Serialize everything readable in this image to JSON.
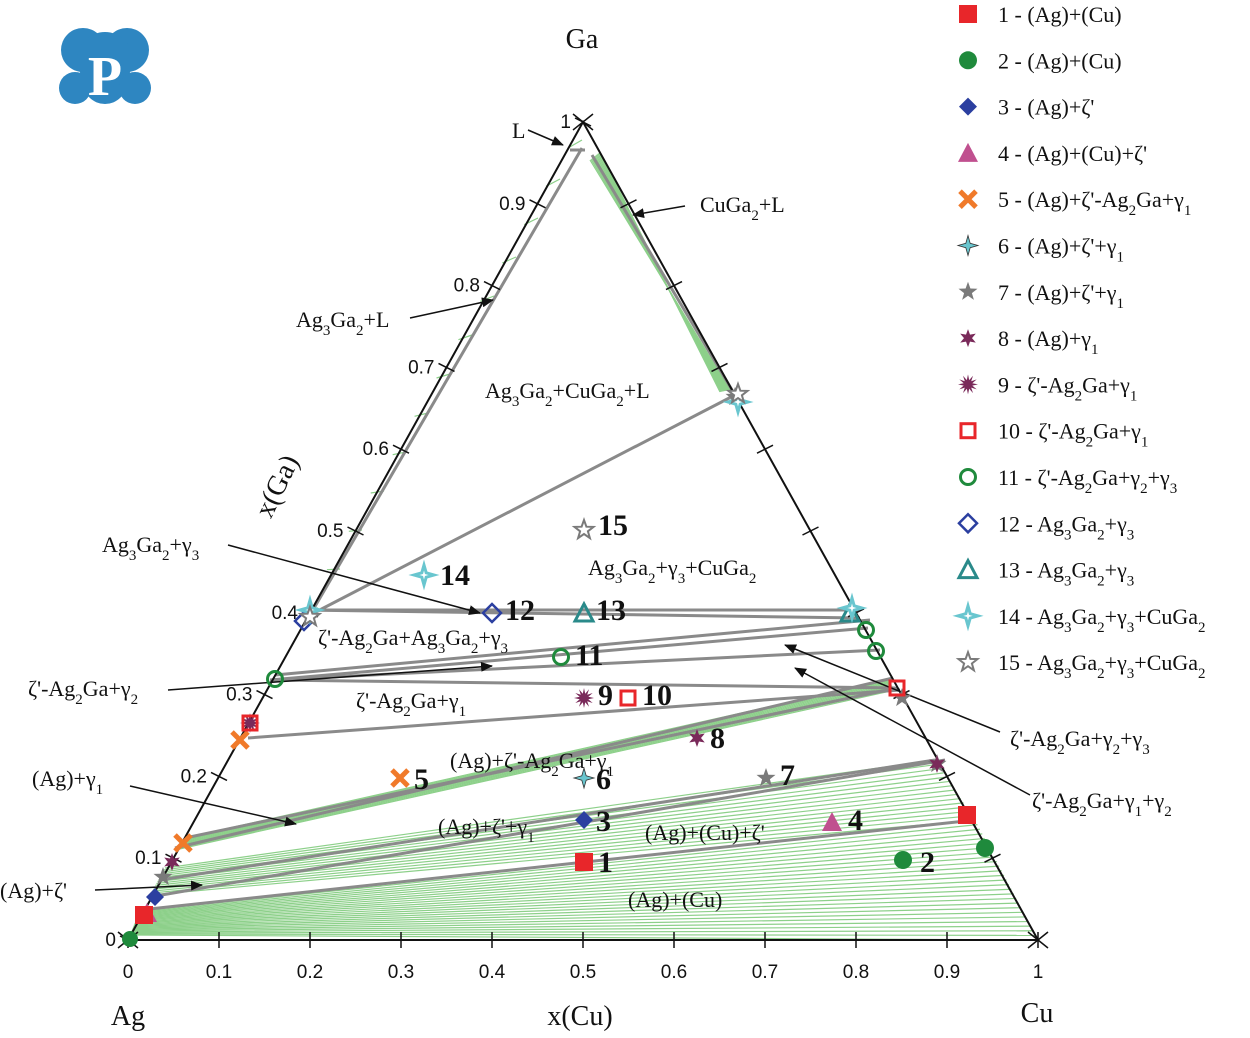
{
  "logo": {
    "letter": "P"
  },
  "corners": {
    "top": "Ga",
    "left": "Ag",
    "right": "Cu"
  },
  "axes": {
    "bottom_title": "x(Cu)",
    "left_title": "x(Ga)",
    "ticks": [
      "0",
      "0.1",
      "0.2",
      "0.3",
      "0.4",
      "0.5",
      "0.6",
      "0.7",
      "0.8",
      "0.9",
      "1"
    ],
    "range": [
      0,
      1
    ]
  },
  "regions": [
    {
      "id": "L",
      "html": "L"
    },
    {
      "id": "cuga2_l",
      "html": "CuGa<tspan baseline-shift='sub' font-size='15'>2</tspan>+L"
    },
    {
      "id": "ag3ga2_l",
      "html": "Ag<tspan baseline-shift='sub' font-size='15'>3</tspan>Ga<tspan baseline-shift='sub' font-size='15'>2</tspan>+L"
    },
    {
      "id": "ag3ga2_cuga2_l",
      "html": "Ag<tspan baseline-shift='sub' font-size='15'>3</tspan>Ga<tspan baseline-shift='sub' font-size='15'>2</tspan>+CuGa<tspan baseline-shift='sub' font-size='15'>2</tspan>+L"
    },
    {
      "id": "ag3ga2_g3",
      "html": "Ag<tspan baseline-shift='sub' font-size='15'>3</tspan>Ga<tspan baseline-shift='sub' font-size='15'>2</tspan>+γ<tspan baseline-shift='sub' font-size='15'>3</tspan>"
    },
    {
      "id": "ag3ga2_g3_cuga2",
      "html": "Ag<tspan baseline-shift='sub' font-size='15'>3</tspan>Ga<tspan baseline-shift='sub' font-size='15'>2</tspan>+γ<tspan baseline-shift='sub' font-size='15'>3</tspan>+CuGa<tspan baseline-shift='sub' font-size='15'>2</tspan>"
    },
    {
      "id": "z_ag3ga2_g3",
      "html": "ζ'-Ag<tspan baseline-shift='sub' font-size='15'>2</tspan>Ga+Ag<tspan baseline-shift='sub' font-size='15'>3</tspan>Ga<tspan baseline-shift='sub' font-size='15'>2</tspan>+γ<tspan baseline-shift='sub' font-size='15'>3</tspan>"
    },
    {
      "id": "z_g2",
      "html": "ζ'-Ag<tspan baseline-shift='sub' font-size='15'>2</tspan>Ga+γ<tspan baseline-shift='sub' font-size='15'>2</tspan>"
    },
    {
      "id": "z_g1",
      "html": "ζ'-Ag<tspan baseline-shift='sub' font-size='15'>2</tspan>Ga+γ<tspan baseline-shift='sub' font-size='15'>1</tspan>"
    },
    {
      "id": "z_g2_g3",
      "html": "ζ'-Ag<tspan baseline-shift='sub' font-size='15'>2</tspan>Ga+γ<tspan baseline-shift='sub' font-size='15'>2</tspan>+γ<tspan baseline-shift='sub' font-size='15'>3</tspan>"
    },
    {
      "id": "z_g1_g2",
      "html": "ζ'-Ag<tspan baseline-shift='sub' font-size='15'>2</tspan>Ga+γ<tspan baseline-shift='sub' font-size='15'>1</tspan>+γ<tspan baseline-shift='sub' font-size='15'>2</tspan>"
    },
    {
      "id": "ag_z_ag2ga_g1",
      "html": "(Ag)+ζ'-Ag<tspan baseline-shift='sub' font-size='15'>2</tspan>Ga+γ<tspan baseline-shift='sub' font-size='15'>1</tspan>"
    },
    {
      "id": "ag_g1",
      "html": "(Ag)+γ<tspan baseline-shift='sub' font-size='15'>1</tspan>"
    },
    {
      "id": "ag_z_g1",
      "html": "(Ag)+ζ'+γ<tspan baseline-shift='sub' font-size='15'>1</tspan>"
    },
    {
      "id": "ag_cu_z",
      "html": "(Ag)+(Cu)+ζ'"
    },
    {
      "id": "ag_z",
      "html": "(Ag)+ζ'"
    },
    {
      "id": "ag_cu",
      "html": "(Ag)+(Cu)"
    }
  ],
  "samples": [
    {
      "n": "1",
      "label": "1",
      "legend": "1 - (Ag)+(Cu)",
      "marker": "square-filled",
      "color": "#e8262a",
      "cu": 0.5,
      "ga": 0.1
    },
    {
      "n": "2",
      "label": "2",
      "legend": "2 - (Ag)+(Cu)",
      "marker": "circle-filled",
      "color": "#1f8a3c",
      "cu": 0.85,
      "ga": 0.1
    },
    {
      "n": "3",
      "label": "3",
      "legend": "3 - (Ag)+ζ'",
      "marker": "diamond-filled",
      "color": "#2b3fa0",
      "cu": 0.43,
      "ga": 0.15
    },
    {
      "n": "4",
      "label": "4",
      "legend": "4 - (Ag)+(Cu)+ζ'",
      "marker": "triangle-filled",
      "color": "#c0508f",
      "cu": 0.69,
      "ga": 0.15
    },
    {
      "n": "5",
      "label": "5",
      "legend": "5 - (Ag)+ζ'-Ag<tspan baseline-shift='sub' font-size='15'>2</tspan>Ga+γ<tspan baseline-shift='sub' font-size='15'>1</tspan>",
      "marker": "x-cross",
      "color": "#f07a2a",
      "cu": 0.2,
      "ga": 0.2
    },
    {
      "n": "6",
      "label": "6",
      "legend": "6 - (Ag)+ζ'+γ<tspan baseline-shift='sub' font-size='15'>1</tspan>",
      "marker": "star4-filled",
      "color": "#69c6cf",
      "cu": 0.4,
      "ga": 0.2
    },
    {
      "n": "7",
      "label": "7",
      "legend": "7 - (Ag)+ζ'+γ<tspan baseline-shift='sub' font-size='15'>1</tspan>",
      "marker": "star5-filled",
      "color": "#7a7a7a",
      "cu": 0.6,
      "ga": 0.2
    },
    {
      "n": "8",
      "label": "8",
      "legend": "8 - (Ag)+γ<tspan baseline-shift='sub' font-size='15'>1</tspan>",
      "marker": "star6-filled",
      "color": "#7a2a5a",
      "cu": 0.5,
      "ga": 0.25
    },
    {
      "n": "9",
      "label": "9",
      "legend": "9 - ζ'-Ag<tspan baseline-shift='sub' font-size='15'>2</tspan>Ga+γ<tspan baseline-shift='sub' font-size='15'>1</tspan>",
      "marker": "star12-filled",
      "color": "#7a2a5a",
      "cu": 0.35,
      "ga": 0.3
    },
    {
      "n": "10",
      "label": "10",
      "legend": "10 - ζ'-Ag<tspan baseline-shift='sub' font-size='15'>2</tspan>Ga+γ<tspan baseline-shift='sub' font-size='15'>1</tspan>",
      "marker": "square-open",
      "color": "#e8262a",
      "cu": 0.4,
      "ga": 0.3
    },
    {
      "n": "11",
      "label": "11",
      "legend": "11 - ζ'-Ag<tspan baseline-shift='sub' font-size='15'>2</tspan>Ga+γ<tspan baseline-shift='sub' font-size='15'>2</tspan>+γ<tspan baseline-shift='sub' font-size='15'>3</tspan>",
      "marker": "circle-open",
      "color": "#1f8a3c",
      "cu": 0.3,
      "ga": 0.35
    },
    {
      "n": "12",
      "label": "12",
      "legend": "12 - Ag<tspan baseline-shift='sub' font-size='15'>3</tspan>Ga<tspan baseline-shift='sub' font-size='15'>2</tspan>+γ<tspan baseline-shift='sub' font-size='15'>3</tspan>",
      "marker": "diamond-open",
      "color": "#2b3fa0",
      "cu": 0.2,
      "ga": 0.4
    },
    {
      "n": "13",
      "label": "13",
      "legend": "13 - Ag<tspan baseline-shift='sub' font-size='15'>3</tspan>Ga<tspan baseline-shift='sub' font-size='15'>2</tspan>+γ<tspan baseline-shift='sub' font-size='15'>3</tspan>",
      "marker": "triangle-open",
      "color": "#2a8a8a",
      "cu": 0.3,
      "ga": 0.4
    },
    {
      "n": "14",
      "label": "14",
      "legend": "14 - Ag<tspan baseline-shift='sub' font-size='15'>3</tspan>Ga<tspan baseline-shift='sub' font-size='15'>2</tspan>+γ<tspan baseline-shift='sub' font-size='15'>3</tspan>+CuGa<tspan baseline-shift='sub' font-size='15'>2</tspan>",
      "marker": "star4-open",
      "color": "#69c6cf",
      "cu": 0.1,
      "ga": 0.45
    },
    {
      "n": "15",
      "label": "15",
      "legend": "15 - Ag<tspan baseline-shift='sub' font-size='15'>3</tspan>Ga<tspan baseline-shift='sub' font-size='15'>2</tspan>+γ<tspan baseline-shift='sub' font-size='15'>3</tspan>+CuGa<tspan baseline-shift='sub' font-size='15'>2</tspan>",
      "marker": "star5-open",
      "color": "#7a7a7a",
      "cu": 0.25,
      "ga": 0.5
    }
  ],
  "colors": {
    "tieline": "#8dd08a",
    "boundary": "#8a8a8a",
    "frame": "#111111",
    "logo": "#2e86c1"
  }
}
